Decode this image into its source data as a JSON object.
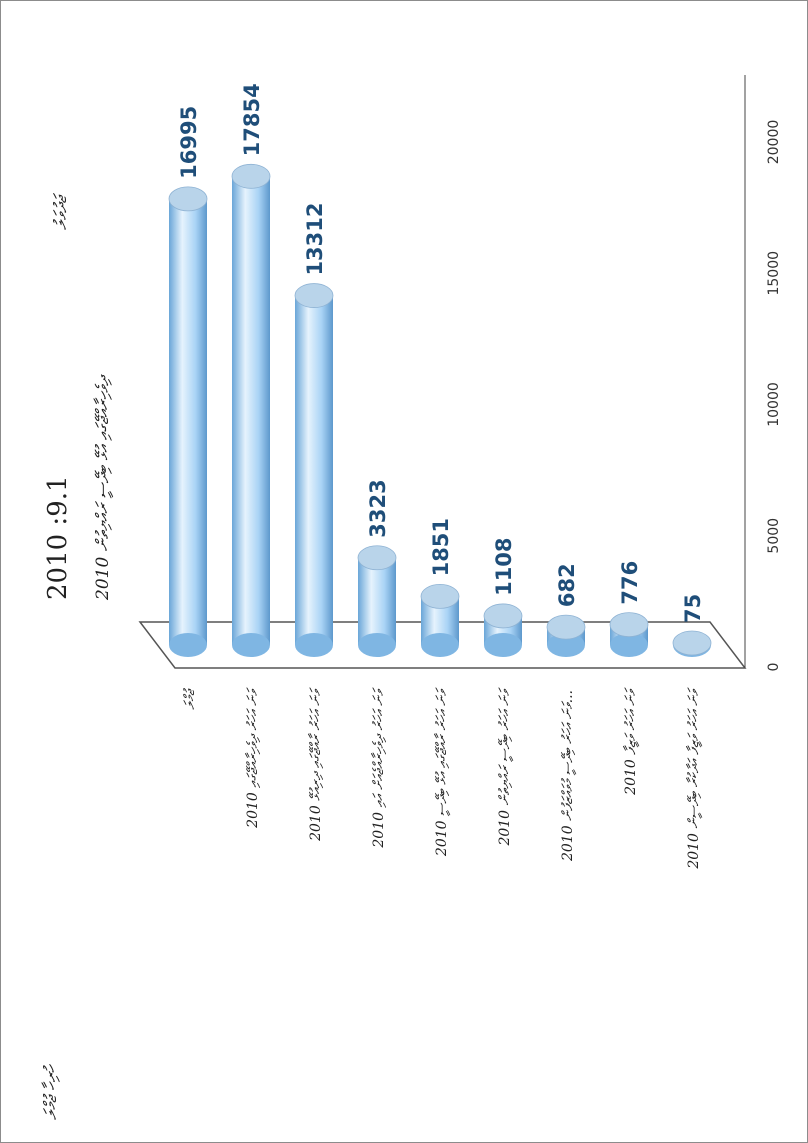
{
  "chart_data": {
    "type": "bar",
    "orientation": "horizontal-3d-cylinder",
    "title": "2010 :9.1",
    "title_suffix": "ޖަދުވަލު",
    "subtitle": "ދިވެހިރާއްޖޭގައި އުޅޭ ބިދޭސީ ރައްޔިތުން 2010",
    "side_title": "ހުރިހާ ޖުމްލަ",
    "categories": [
      "ޖުމްލަ",
      "2010 ވަނަ އަހަރު ދިވެހިރާއްޖޭގައި",
      "2010 ވަނަ އަހަރު ރާއްޖޭގައި ދިރިއުޅޭ",
      "2010 ވަނަ އަހަރު ދިވެހިރާއްޖެއަށް އައި",
      "2010 ވަނަ އަހަރު ރާއްޖޭގައި އުޅޭ ބިދޭސީ",
      "2010 ވަނަ އަހަރު ބިދޭސީ ރައްޔިތުން",
      "2010 ވަނަ އަހަރު ބިދޭސީ މުވައްޒަފުން...",
      "2010 ވަނަ އަހަރު ވަޒީފާ",
      "2010 ވަނަ އަހަރު ވަޒީފާ އަދާކުރާ ބިދޭސީން"
    ],
    "values": [
      16995,
      17854,
      13312,
      3323,
      1851,
      1108,
      682,
      776,
      75
    ],
    "xlim": [
      0,
      20000
    ],
    "ticks": [
      "0",
      "5000",
      "10000",
      "15000",
      "20000"
    ],
    "grid": false,
    "legend": "none",
    "colors": {
      "bar": "#9fcdf3",
      "bar_light": "#e3f2fd",
      "bar_dark": "#5a9ad0",
      "top": "#b9d4ea",
      "label": "#1f4e79"
    }
  }
}
